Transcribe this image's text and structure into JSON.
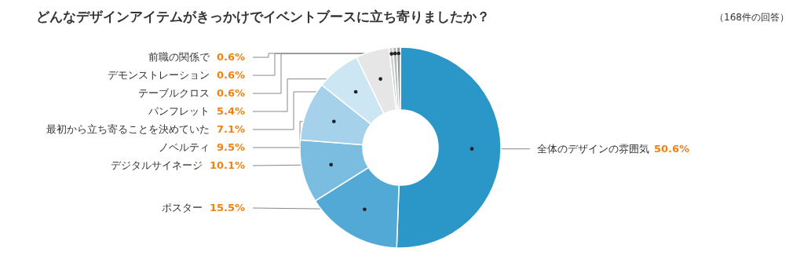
{
  "chart_data": {
    "type": "donut",
    "title": "どんなデザインアイテムがきっかけでイベントブースに立ち寄りましたか？",
    "annotations": [
      "（168件の回答）"
    ],
    "categories": [
      "全体のデザインの雰囲気",
      "ポスター",
      "デジタルサイネージ",
      "ノベルティ",
      "最初から立ち寄ることを決めていた",
      "パンフレット",
      "テーブルクロス",
      "デモンストレーション",
      "前職の関係で"
    ],
    "values": [
      50.6,
      15.5,
      10.1,
      9.5,
      7.1,
      5.4,
      0.6,
      0.6,
      0.6
    ],
    "value_labels": [
      "50.6%",
      "15.5%",
      "10.1%",
      "9.5%",
      "7.1%",
      "5.4%",
      "0.6%",
      "0.6%",
      "0.6%"
    ],
    "colors": [
      "#2b96c8",
      "#52a9d5",
      "#7bbde0",
      "#a5d1ea",
      "#cce6f3",
      "#e6e6e6",
      "#cfcfcf",
      "#b5b5b5",
      "#999999"
    ]
  }
}
